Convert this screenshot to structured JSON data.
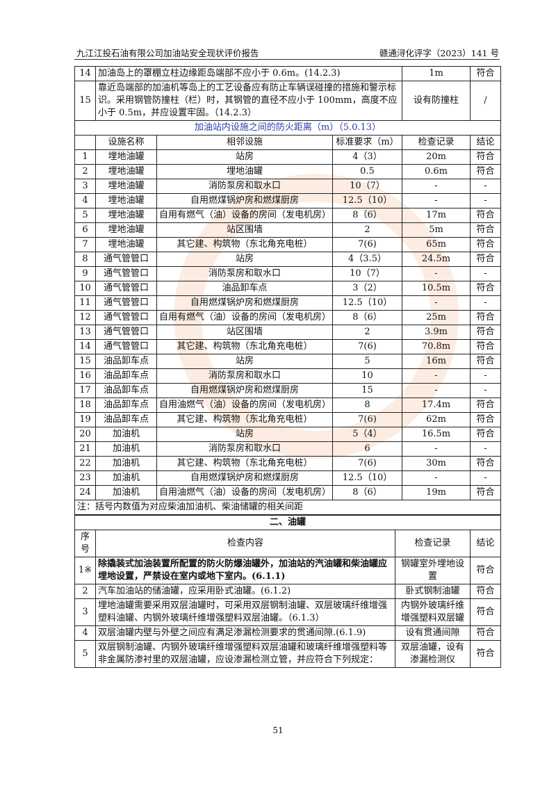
{
  "header": {
    "left": "九江江投石油有限公司加油站安全现状评价报告",
    "right": "赣通浔化评字（2023）141 号"
  },
  "top_rows": [
    {
      "no": "14",
      "content": "加油岛上的罩棚立柱边缘距岛端部不应小于 0.6m。(14.2.3)",
      "record": "1m",
      "result": "符合"
    },
    {
      "no": "15",
      "content": "靠近岛端部的加油机等岛上的工艺设备应有防止车辆误碰撞的措施和警示标识。采用钢管防撞柱（栏）时，其钢管的直径不应小于 100mm，高度不应小于 0.5m，并应设置牢固。（14.2.3）",
      "record": "设有防撞柱",
      "result": "/"
    }
  ],
  "distance_section": {
    "title": "加油站内设施之间的防火距离（m）（5.0.13）",
    "headers": [
      "设施名称",
      "相邻设施",
      "标准要求（m）",
      "检查记录",
      "结论"
    ],
    "rows": [
      [
        "1",
        "埋地油罐",
        "站房",
        "4（3）",
        "20m",
        "符合"
      ],
      [
        "2",
        "埋地油罐",
        "埋地油罐",
        "0.5",
        "0.6m",
        "符合"
      ],
      [
        "3",
        "埋地油罐",
        "消防泵房和取水口",
        "10（7）",
        "-",
        "-"
      ],
      [
        "4",
        "埋地油罐",
        "自用燃煤锅炉房和燃煤厨房",
        "12.5（10）",
        "-",
        "-"
      ],
      [
        "5",
        "埋地油罐",
        "自用有燃气（油）设备的房间（发电机房）",
        "8（6）",
        "17m",
        "符合"
      ],
      [
        "6",
        "埋地油罐",
        "站区围墙",
        "2",
        "5m",
        "符合"
      ],
      [
        "7",
        "埋地油罐",
        "其它建、构筑物（东北角充电桩）",
        "7(6)",
        "65m",
        "符合"
      ],
      [
        "8",
        "通气管管口",
        "站房",
        "4（3.5）",
        "24.5m",
        "符合"
      ],
      [
        "9",
        "通气管管口",
        "消防泵房和取水口",
        "10（7）",
        "-",
        "-"
      ],
      [
        "10",
        "通气管管口",
        "油品卸车点",
        "3（2）",
        "10.5m",
        "符合"
      ],
      [
        "11",
        "通气管管口",
        "自用燃煤锅炉房和燃煤厨房",
        "12.5（10）",
        "-",
        "-"
      ],
      [
        "12",
        "通气管管口",
        "自用有燃气（油）设备的房间（发电机房）",
        "8（6）",
        "25m",
        "符合"
      ],
      [
        "13",
        "通气管管口",
        "站区围墙",
        "2",
        "3.9m",
        "符合"
      ],
      [
        "14",
        "通气管管口",
        "其它建、构筑物（东北角充电桩）",
        "7(6)",
        "70.8m",
        "符合"
      ],
      [
        "15",
        "油品卸车点",
        "站房",
        "5",
        "16m",
        "符合"
      ],
      [
        "16",
        "油品卸车点",
        "消防泵房和取水口",
        "10",
        "-",
        "-"
      ],
      [
        "17",
        "油品卸车点",
        "自用燃煤锅炉房和燃煤厨房",
        "15",
        "-",
        "-"
      ],
      [
        "18",
        "油品卸车点",
        "自用油燃气（油）设备的房间（发电机房）",
        "8",
        "17.4m",
        "符合"
      ],
      [
        "19",
        "油品卸车点",
        "其它建、构筑物（东北角充电桩）",
        "7(6)",
        "62m",
        "符合"
      ],
      [
        "20",
        "加油机",
        "站房",
        "5（4）",
        "16.5m",
        "符合"
      ],
      [
        "21",
        "加油机",
        "消防泵房和取水口",
        "6",
        "-",
        "-"
      ],
      [
        "22",
        "加油机",
        "其它建、构筑物（东北角充电桩）",
        "7(6)",
        "30m",
        "符合"
      ],
      [
        "23",
        "加油机",
        "自用燃煤锅炉房和燃煤厨房",
        "12.5（10）",
        "-",
        "-"
      ],
      [
        "24",
        "加油机",
        "自用油燃气（油）设备的房间（发电机房）",
        "8（6）",
        "19m",
        "符合"
      ]
    ],
    "note": "注：括号内数值为对应柴油加油机、柴油储罐的相关间距"
  },
  "tank_section": {
    "title": "二、油罐",
    "headers": [
      "序号",
      "检查内容",
      "检查记录",
      "结论"
    ],
    "rows": [
      {
        "no": "1※",
        "content": "除撬装式加油装置所配置的防火防爆油罐外，加油站的汽油罐和柴油罐应埋地设置，严禁设在室内或地下室内。(6.1.1)",
        "record": "钢罐室外埋地设置",
        "result": "符合",
        "bold": true
      },
      {
        "no": "2",
        "content": "汽车加油站的储油罐，应采用卧式油罐。(6.1.2)",
        "record": "卧式钢制油罐",
        "result": "符合"
      },
      {
        "no": "3",
        "content": "埋地油罐需要采用双层油罐时，可采用双层钢制油罐、双层玻璃纤维增强塑料油罐、内钢外玻璃纤维增强塑料双层油罐。（6.1.3）",
        "record": "内钢外玻璃纤维增强塑料双层罐",
        "result": "符合"
      },
      {
        "no": "4",
        "content": "双层油罐内壁与外壁之间应有满足渗漏检测要求的贯通间隙.(6.1.9)",
        "record": "设有贯通间隙",
        "result": "符合"
      },
      {
        "no": "5",
        "content": "双层钢制油罐、内钢外玻璃纤维增强塑料双层油罐和玻璃纤维增强塑料等非金属防渗衬里的双层油罐，应设渗漏检测立管，并应符合下列规定：",
        "record": "双层油罐，设有渗漏检测仪",
        "result": "符合"
      }
    ]
  },
  "footer": {
    "page_number": "51"
  }
}
